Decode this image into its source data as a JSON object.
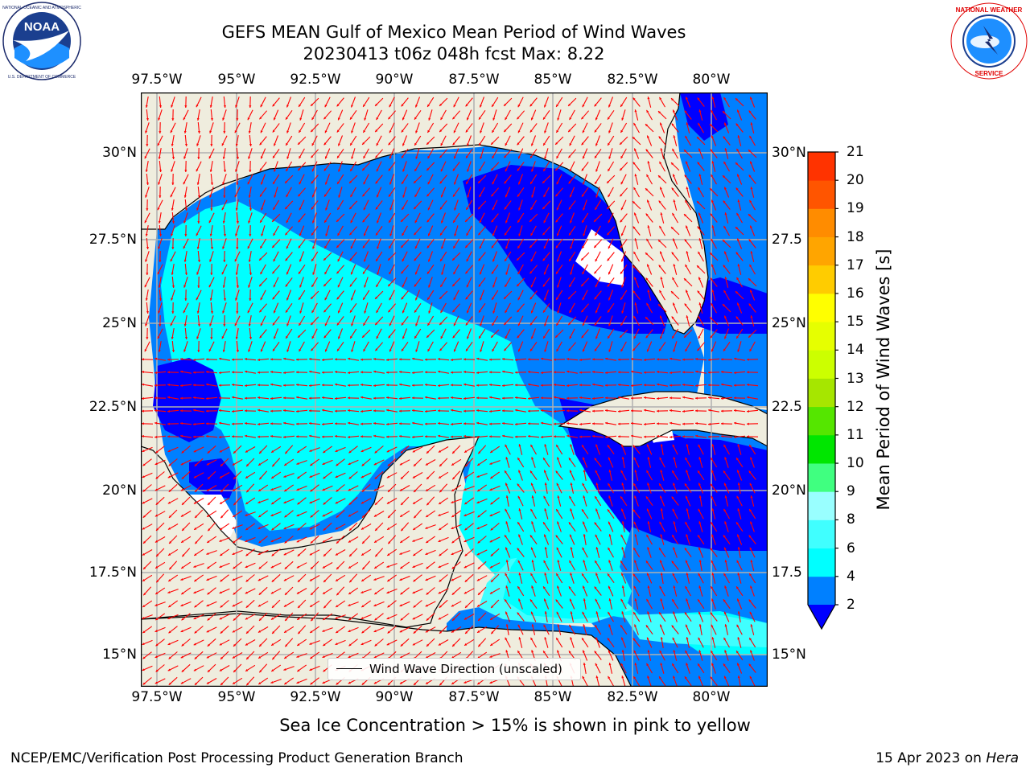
{
  "header": {
    "title_line1": "GEFS MEAN Gulf of Mexico Mean Period of Wind Waves",
    "title_line2": "20230413 t06z 048h fcst   Max: 8.22"
  },
  "logos": {
    "left": {
      "name": "noaa-logo",
      "text": "NOAA",
      "ring_text": "NATIONAL OCEANIC AND ATMOSPHERIC ADMINISTRATION · U.S. DEPARTMENT OF COMMERCE"
    },
    "right": {
      "name": "nws-logo",
      "ring_text": "NATIONAL WEATHER SERVICE"
    }
  },
  "map": {
    "region": "Gulf of Mexico",
    "lon_range": [
      -98.5,
      -78.7
    ],
    "lat_range": [
      14.1,
      31.6
    ],
    "lon_ticks": [
      "97.5°W",
      "95°W",
      "92.5°W",
      "90°W",
      "87.5°W",
      "85°W",
      "82.5°W",
      "80°W"
    ],
    "lat_ticks_left": [
      "30°N",
      "27.5°N",
      "25°N",
      "22.5°N",
      "20°N",
      "17.5°N",
      "15°N"
    ],
    "lat_ticks_right": [
      "30°N",
      "27.5",
      "25°N",
      "22.5",
      "20°N",
      "17.5",
      "15°N"
    ],
    "gridlines": true,
    "land_color": "#efedde",
    "vector_color": "#ff0000"
  },
  "legend": {
    "label": "Wind Wave Direction (unscaled)",
    "position": "lower-center"
  },
  "colorbar": {
    "label": "Mean Period of Wind Waves [s]",
    "tick_labels": [
      "2",
      "4",
      "6",
      "8",
      "9",
      "10",
      "11",
      "12",
      "13",
      "14",
      "15",
      "16",
      "17",
      "18",
      "19",
      "20",
      "21"
    ],
    "colors": [
      "#0000ff",
      "#0080ff",
      "#00ffff",
      "#40ffff",
      "#99ffff",
      "#40ff80",
      "#00e600",
      "#55e600",
      "#a6e600",
      "#ccff00",
      "#e6ff00",
      "#ffff00",
      "#ffcc00",
      "#ffa500",
      "#ff8c00",
      "#ff5500",
      "#ff3300",
      "#ff0000"
    ],
    "extend": "min"
  },
  "caption": "Sea Ice Concentration > 15% is shown in pink to yellow",
  "footer": {
    "left": "NCEP/EMC/Verification Post Processing Product Generation Branch",
    "date": "15 Apr 2023 on ",
    "host": "Hera"
  }
}
